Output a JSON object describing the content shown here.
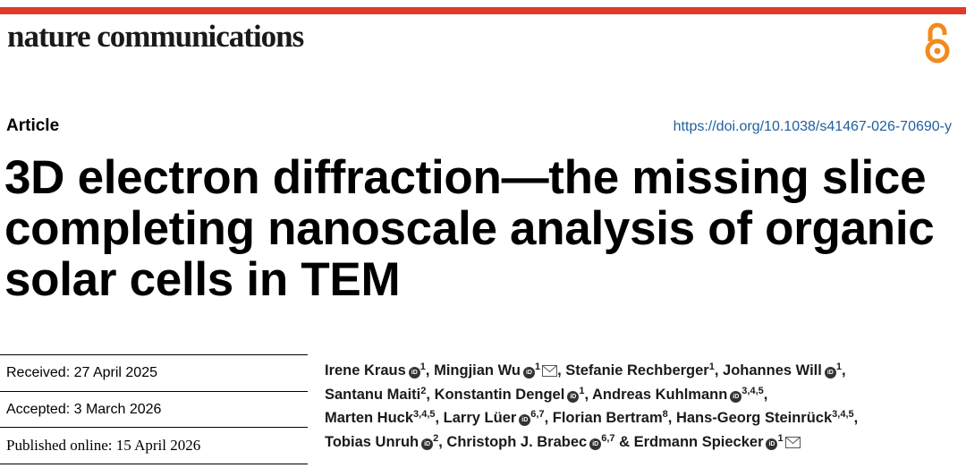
{
  "colors": {
    "brand_red": "#e03a26",
    "doi_blue": "#1f5f9e",
    "oa_orange": "#f28a1d"
  },
  "header": {
    "journal": "nature communications",
    "open_access_icon": "open-access-icon"
  },
  "article": {
    "type": "Article",
    "doi": "https://doi.org/10.1038/s41467-026-70690-y",
    "title_lines": [
      "3D electron diffraction—the missing slice",
      "completing nanoscale analysis of organic",
      "solar cells in TEM"
    ]
  },
  "dates": {
    "received": "Received: 27 April 2025",
    "accepted": "Accepted: 3 March 2026",
    "published": "Published online: 15 April 2026"
  },
  "authors": [
    {
      "name": "Irene Kraus",
      "orcid": true,
      "aff": "1"
    },
    {
      "name": "Mingjian Wu",
      "orcid": true,
      "aff": "1",
      "email": true
    },
    {
      "name": "Stefanie Rechberger",
      "orcid": false,
      "aff": "1"
    },
    {
      "name": "Johannes Will",
      "orcid": true,
      "aff": "1"
    },
    {
      "name": "Santanu Maiti",
      "orcid": false,
      "aff": "2"
    },
    {
      "name": "Konstantin Dengel",
      "orcid": true,
      "aff": "1"
    },
    {
      "name": "Andreas Kuhlmann",
      "orcid": true,
      "aff": "3,4,5"
    },
    {
      "name": "Marten Huck",
      "orcid": false,
      "aff": "3,4,5"
    },
    {
      "name": "Larry Lüer",
      "orcid": true,
      "aff": "6,7"
    },
    {
      "name": "Florian Bertram",
      "orcid": false,
      "aff": "8"
    },
    {
      "name": "Hans-Georg Steinrück",
      "orcid": false,
      "aff": "3,4,5"
    },
    {
      "name": "Tobias Unruh",
      "orcid": true,
      "aff": "2"
    },
    {
      "name": "Christoph J. Brabec",
      "orcid": true,
      "aff": "6,7"
    },
    {
      "name": "Erdmann Spiecker",
      "orcid": true,
      "aff": "1",
      "email": true
    }
  ],
  "author_lines": [
    [
      0,
      1,
      2,
      3
    ],
    [
      4,
      5,
      6
    ],
    [
      7,
      8,
      9,
      10
    ],
    [
      11,
      12,
      13
    ]
  ],
  "orcid_label": "iD",
  "last_separator": "& "
}
